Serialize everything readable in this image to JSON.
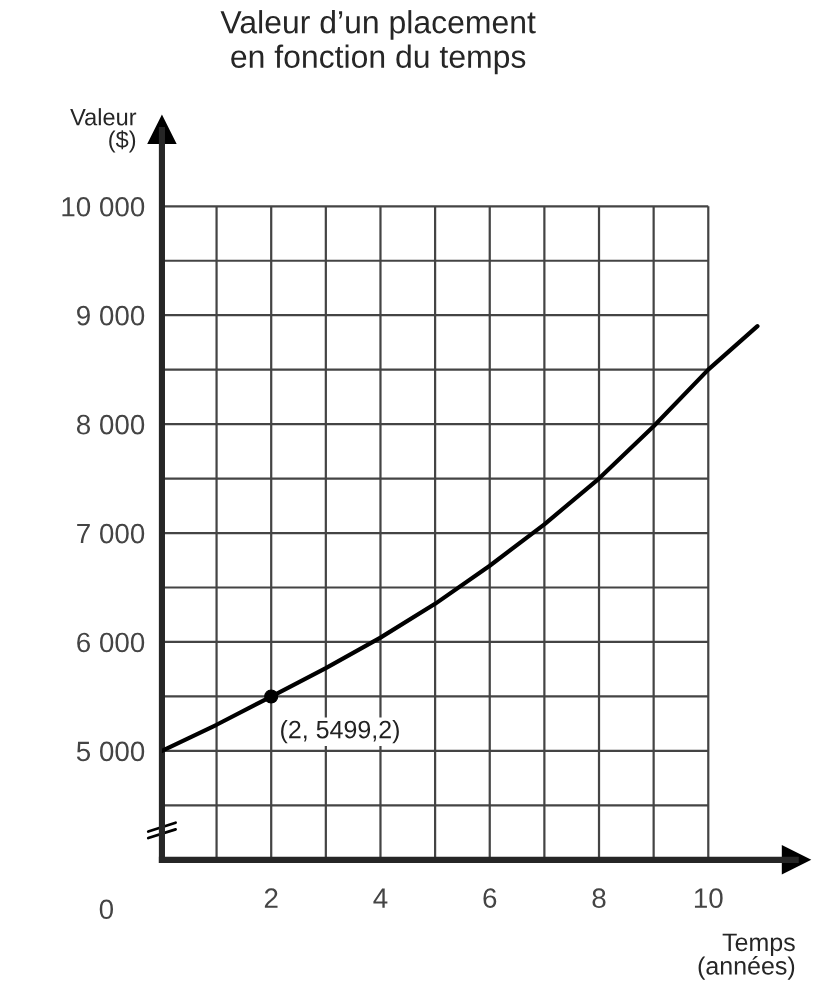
{
  "chart_data": {
    "type": "line",
    "title": "Valeur d’un placement\nen fonction du temps",
    "xlabel": "Temps\n(années)",
    "ylabel": "Valeur\n($)",
    "series": [
      {
        "color": "#000000",
        "x": [
          0,
          1,
          2,
          3,
          4,
          5,
          6,
          7,
          8,
          9,
          10,
          10.9
        ],
        "values": [
          5000,
          5240,
          5499.2,
          5760,
          6040,
          6350,
          6700,
          7080,
          7500,
          7980,
          8500,
          8900
        ]
      },
      {
        "type": "scatter",
        "marker": "circle",
        "color": "#000000",
        "x": [
          2
        ],
        "values": [
          5499.2
        ]
      }
    ],
    "annotations": [
      {
        "text": "(2, 5499,2)",
        "x": 2,
        "y": 5499.2
      },
      "0"
    ],
    "xlim": [
      0,
      11.6
    ],
    "ylim": [
      4000,
      10700
    ],
    "xticks": [
      {
        "value": 1,
        "label": null
      },
      {
        "value": 2,
        "label": "2"
      },
      {
        "value": 3,
        "label": null
      },
      {
        "value": 4,
        "label": "4"
      },
      {
        "value": 5,
        "label": null
      },
      {
        "value": 6,
        "label": "6"
      },
      {
        "value": 7,
        "label": null
      },
      {
        "value": 8,
        "label": "8"
      },
      {
        "value": 9,
        "label": null
      },
      {
        "value": 10,
        "label": "10"
      }
    ],
    "yticks": [
      {
        "value": 4500,
        "label": null
      },
      {
        "value": 5000,
        "label": "5 000"
      },
      {
        "value": 5500,
        "label": null
      },
      {
        "value": 6000,
        "label": "6 000"
      },
      {
        "value": 6500,
        "label": null
      },
      {
        "value": 7000,
        "label": "7 000"
      },
      {
        "value": 7500,
        "label": null
      },
      {
        "value": 8000,
        "label": "8 000"
      },
      {
        "value": 8500,
        "label": null
      },
      {
        "value": 9000,
        "label": "9 000"
      },
      {
        "value": 9500,
        "label": null
      },
      {
        "value": 10000,
        "label": "10 000"
      }
    ],
    "grid": true,
    "marker": "none",
    "line_style": "solid"
  }
}
